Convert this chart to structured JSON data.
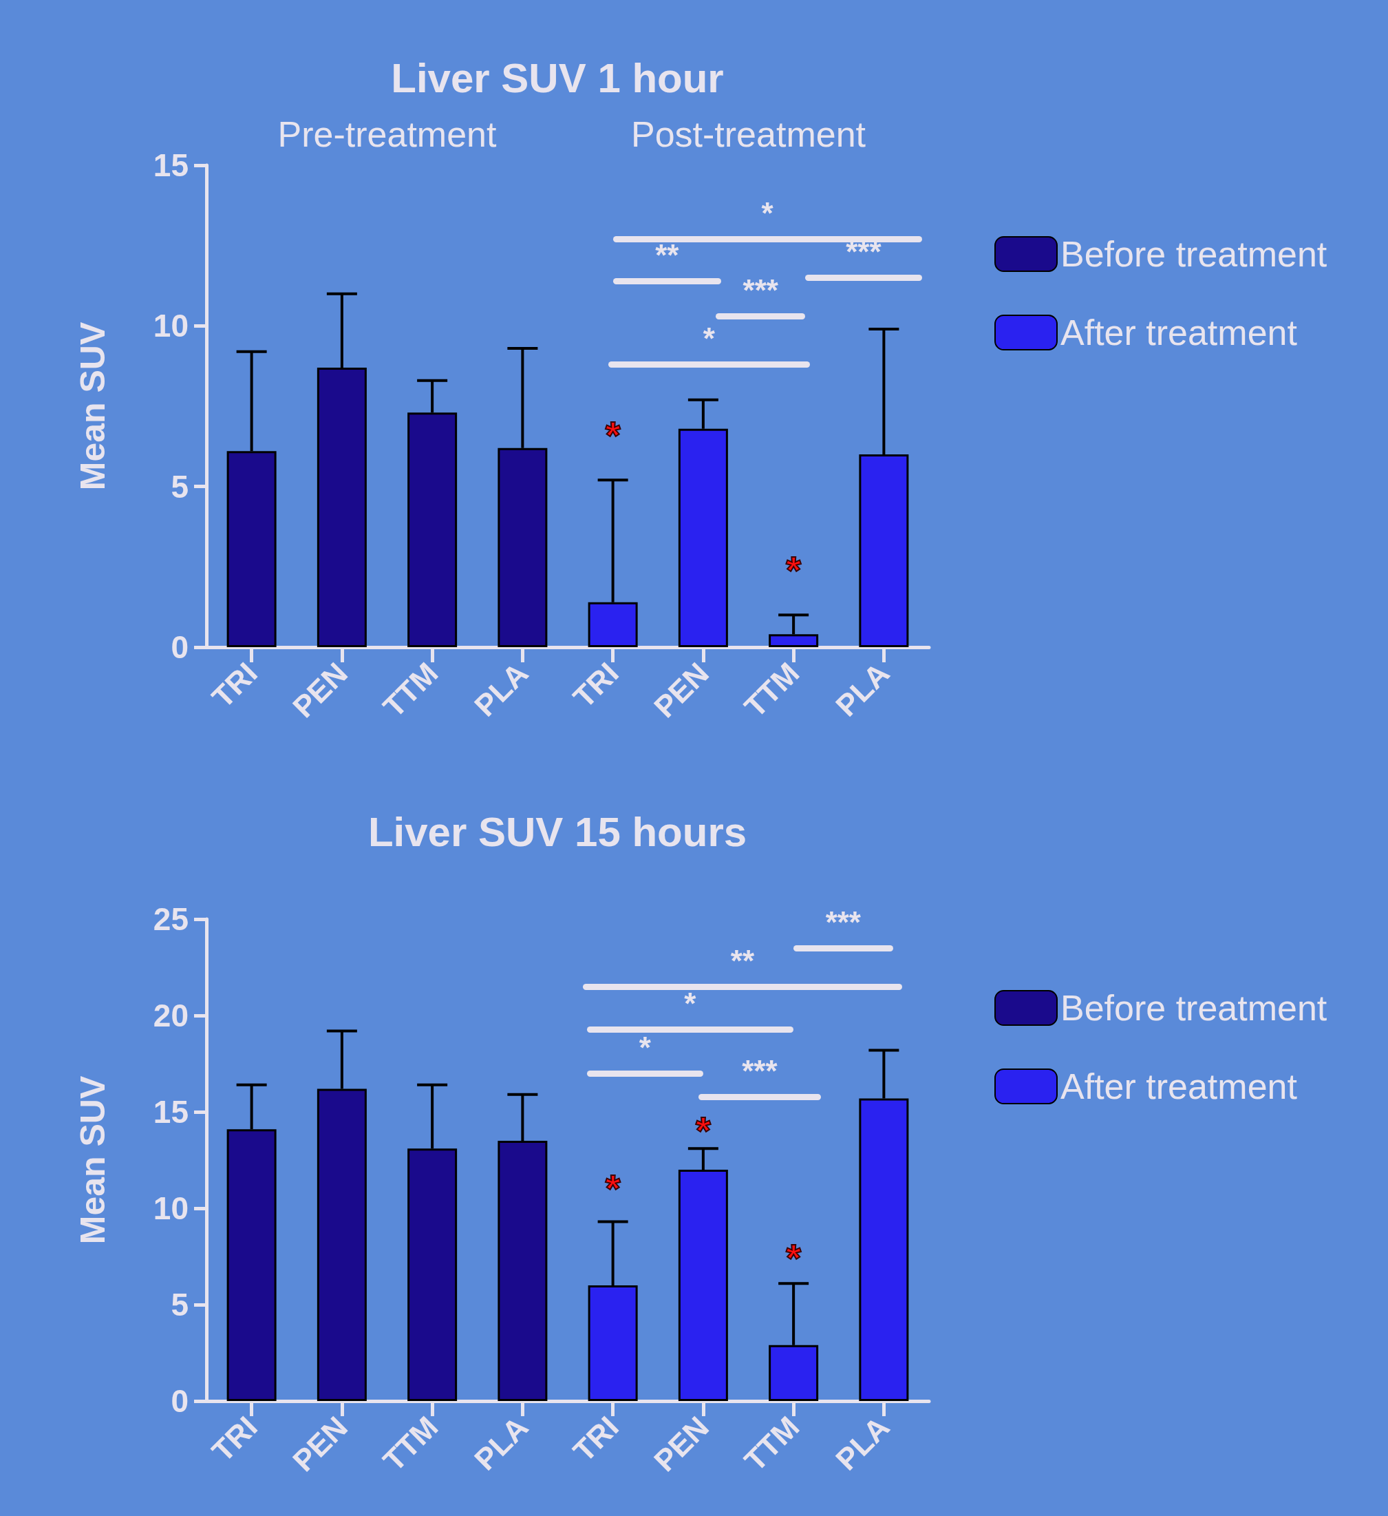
{
  "chart_data": [
    {
      "type": "bar",
      "title": "Liver SUV 1 hour",
      "ylabel": "Mean SUV",
      "categories": [
        "TRI",
        "PEN",
        "TTM",
        "PLA",
        "TRI",
        "PEN",
        "TTM",
        "PLA"
      ],
      "series": [
        {
          "name": "Before treatment",
          "color": "#1a0a8c",
          "values": [
            6.1,
            8.7,
            7.3,
            6.2,
            null,
            null,
            null,
            null
          ],
          "errors": [
            [
              6.1,
              9.2
            ],
            [
              8.7,
              11.0
            ],
            [
              7.3,
              8.3
            ],
            [
              6.2,
              9.3
            ],
            null,
            null,
            null,
            null
          ]
        },
        {
          "name": "After treatment",
          "color": "#2a22f0",
          "values": [
            null,
            null,
            null,
            null,
            1.4,
            6.8,
            0.4,
            6.0
          ],
          "errors": [
            null,
            null,
            null,
            null,
            [
              1.4,
              5.2
            ],
            [
              6.8,
              7.7
            ],
            [
              0.4,
              1.0
            ],
            [
              6.0,
              9.9
            ]
          ]
        }
      ],
      "ylim": [
        0,
        15
      ],
      "yticks": [
        0,
        5,
        10,
        15
      ],
      "grid": false,
      "legend": "right",
      "annotations": [
        "Pre-treatment",
        "Post-treatment",
        "*",
        "**",
        "***",
        "***",
        "*",
        {
          "text": "*",
          "y": 5.2
        },
        {
          "text": "*",
          "y": 1.0
        }
      ]
    },
    {
      "type": "bar",
      "title": "Liver SUV 15 hours",
      "ylabel": "Mean SUV",
      "categories": [
        "TRI",
        "PEN",
        "TTM",
        "PLA",
        "TRI",
        "PEN",
        "TTM",
        "PLA"
      ],
      "series": [
        {
          "name": "Before treatment",
          "color": "#1a0a8c",
          "values": [
            14.1,
            16.2,
            13.1,
            13.5,
            null,
            null,
            null,
            null
          ],
          "errors": [
            [
              14.1,
              16.4
            ],
            [
              16.2,
              19.2
            ],
            [
              13.1,
              16.4
            ],
            [
              13.5,
              15.9
            ],
            null,
            null,
            null,
            null
          ]
        },
        {
          "name": "After treatment",
          "color": "#2a22f0",
          "values": [
            null,
            null,
            null,
            null,
            6.0,
            12.0,
            2.9,
            15.7
          ],
          "errors": [
            null,
            null,
            null,
            null,
            [
              6.0,
              9.3
            ],
            [
              12.0,
              13.1
            ],
            [
              2.9,
              6.1
            ],
            [
              15.7,
              18.2
            ]
          ]
        }
      ],
      "ylim": [
        0,
        25
      ],
      "yticks": [
        0,
        5,
        10,
        15,
        20,
        25
      ],
      "grid": false,
      "legend": "right",
      "annotations": [
        "***",
        "**",
        "*",
        "*",
        "***",
        "*",
        "*",
        "*"
      ]
    }
  ]
}
